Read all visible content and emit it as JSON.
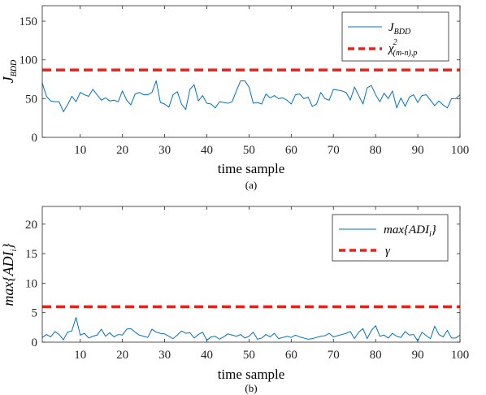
{
  "chart_data": [
    {
      "type": "line",
      "caption": "(a)",
      "xlabel": "time sample",
      "ylabel_main": "J",
      "ylabel_sub": "BDD",
      "xlim": [
        1,
        100
      ],
      "ylim": [
        0,
        170
      ],
      "xticks": [
        10,
        20,
        30,
        40,
        50,
        60,
        70,
        80,
        90,
        100
      ],
      "yticks": [
        0,
        50,
        100,
        150
      ],
      "grid": false,
      "legend_position": "top-right",
      "series": [
        {
          "legend_main": "J",
          "legend_sub": "BDD",
          "color": "#0072BD",
          "style": "solid",
          "x": [
            1,
            2,
            3,
            4,
            5,
            6,
            7,
            8,
            9,
            10,
            11,
            12,
            13,
            14,
            15,
            16,
            17,
            18,
            19,
            20,
            21,
            22,
            23,
            24,
            25,
            26,
            27,
            28,
            29,
            30,
            31,
            32,
            33,
            34,
            35,
            36,
            37,
            38,
            39,
            40,
            41,
            42,
            43,
            44,
            45,
            46,
            47,
            48,
            49,
            50,
            51,
            52,
            53,
            54,
            55,
            56,
            57,
            58,
            59,
            60,
            61,
            62,
            63,
            64,
            65,
            66,
            67,
            68,
            69,
            70,
            71,
            72,
            73,
            74,
            75,
            76,
            77,
            78,
            79,
            80,
            81,
            82,
            83,
            84,
            85,
            86,
            87,
            88,
            89,
            90,
            91,
            92,
            93,
            94,
            95,
            96,
            97,
            98,
            99,
            100
          ],
          "y": [
            70,
            53,
            47,
            46,
            46,
            33,
            42,
            53,
            46,
            58,
            55,
            53,
            62,
            55,
            48,
            51,
            47,
            48,
            46,
            60,
            48,
            42,
            56,
            58,
            55,
            55,
            58,
            73,
            45,
            43,
            39,
            55,
            59,
            43,
            36,
            62,
            68,
            47,
            54,
            44,
            43,
            38,
            46,
            45,
            44,
            46,
            60,
            73,
            73,
            65,
            44,
            45,
            43,
            56,
            51,
            54,
            50,
            51,
            48,
            43,
            55,
            56,
            50,
            52,
            40,
            43,
            58,
            50,
            48,
            62,
            61,
            60,
            58,
            48,
            65,
            54,
            43,
            64,
            67,
            55,
            46,
            57,
            50,
            60,
            38,
            51,
            40,
            52,
            55,
            45,
            54,
            55,
            48,
            41,
            47,
            42,
            38,
            50,
            50,
            55
          ]
        },
        {
          "legend_main": "χ",
          "legend_sup": "2",
          "legend_sub": "(m-n),p",
          "color": "#e8221b",
          "style": "dashed",
          "constant": 87
        }
      ]
    },
    {
      "type": "line",
      "caption": "(b)",
      "xlabel": "time sample",
      "ylabel_main": "max{ADI",
      "ylabel_sub": "i",
      "ylabel_end": "}",
      "xlim": [
        1,
        100
      ],
      "ylim": [
        0,
        23
      ],
      "xticks": [
        10,
        20,
        30,
        40,
        50,
        60,
        70,
        80,
        90,
        100
      ],
      "yticks": [
        0,
        5,
        10,
        15,
        20
      ],
      "grid": false,
      "legend_position": "top-right",
      "series": [
        {
          "legend_main": "max{ADI",
          "legend_sub": "i",
          "legend_end": "}",
          "color": "#0072BD",
          "style": "solid",
          "x": [
            1,
            2,
            3,
            4,
            5,
            6,
            7,
            8,
            9,
            10,
            11,
            12,
            13,
            14,
            15,
            16,
            17,
            18,
            19,
            20,
            21,
            22,
            23,
            24,
            25,
            26,
            27,
            28,
            29,
            30,
            31,
            32,
            33,
            34,
            35,
            36,
            37,
            38,
            39,
            40,
            41,
            42,
            43,
            44,
            45,
            46,
            47,
            48,
            49,
            50,
            51,
            52,
            53,
            54,
            55,
            56,
            57,
            58,
            59,
            60,
            61,
            62,
            63,
            64,
            65,
            66,
            67,
            68,
            69,
            70,
            71,
            72,
            73,
            74,
            75,
            76,
            77,
            78,
            79,
            80,
            81,
            82,
            83,
            84,
            85,
            86,
            87,
            88,
            89,
            90,
            91,
            92,
            93,
            94,
            95,
            96,
            97,
            98,
            99,
            100
          ],
          "y": [
            0.8,
            1.3,
            0.9,
            1.8,
            1.3,
            0.4,
            1.7,
            1.9,
            4.2,
            1.2,
            1.5,
            0.7,
            1.0,
            1.2,
            2.2,
            1.0,
            1.6,
            0.9,
            1.3,
            1.2,
            2.2,
            2.3,
            1.7,
            1.2,
            1.0,
            0.8,
            2.2,
            1.7,
            1.5,
            1.4,
            1.0,
            0.6,
            1.2,
            1.9,
            1.5,
            1.6,
            0.7,
            1.3,
            1.7,
            0.3,
            0.9,
            1.0,
            0.5,
            0.9,
            1.4,
            1.2,
            1.0,
            1.3,
            0.7,
            1.0,
            1.7,
            0.5,
            0.7,
            1.3,
            0.9,
            1.5,
            0.6,
            0.8,
            1.0,
            0.8,
            1.2,
            0.9,
            0.7,
            0.5,
            0.6,
            0.8,
            1.0,
            1.1,
            1.5,
            0.9,
            1.1,
            1.3,
            1.5,
            1.8,
            0.6,
            1.7,
            2.3,
            0.6,
            2.0,
            2.8,
            1.0,
            1.2,
            0.7,
            1.5,
            1.0,
            0.8,
            1.8,
            1.2,
            1.3,
            0.2,
            1.7,
            1.1,
            0.6,
            2.7,
            1.3,
            0.9,
            2.0,
            0.7,
            0.7,
            1.2
          ]
        },
        {
          "legend_main": "γ",
          "color": "#e8221b",
          "style": "dashed",
          "constant": 6
        }
      ]
    }
  ]
}
